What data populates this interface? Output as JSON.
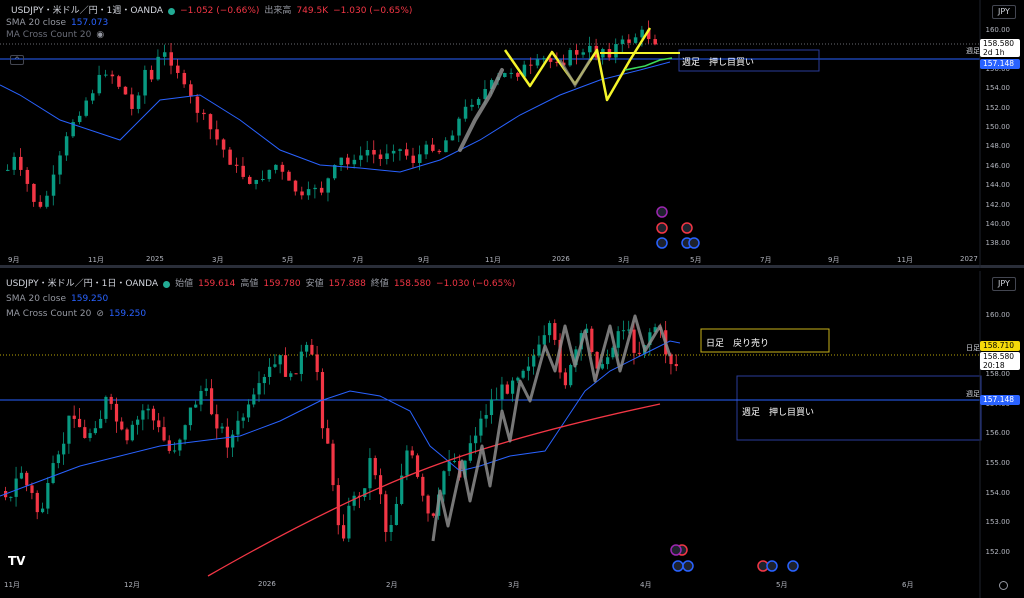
{
  "top": {
    "symbol": "USDJPY・米ドル／円・1週・OANDA",
    "change": "−1.052 (−0.66%)",
    "volume_label": "出来高",
    "volume": "749.5K",
    "volume_change": "−1.030 (−0.65%)",
    "sma_label": "SMA 20 close",
    "sma_value": "157.073",
    "ma_cross_label": "MA Cross Count 20",
    "currency": "JPY",
    "price_ticks": [
      "160.00",
      "158.00",
      "156.00",
      "154.00",
      "152.00",
      "150.00",
      "148.00",
      "146.00",
      "144.00",
      "142.00",
      "140.00",
      "138.00"
    ],
    "time_ticks": [
      "9月",
      "11月",
      "2025",
      "3月",
      "5月",
      "7月",
      "9月",
      "11月",
      "2026",
      "3月",
      "5月",
      "7月",
      "9月",
      "11月",
      "2027"
    ],
    "last_price": "158.580",
    "countdown": "2d 1h",
    "line_price": "157.148",
    "line_label": "週足",
    "annotation": "週足　押し目買い",
    "colors": {
      "up": "#089981",
      "down": "#f23645",
      "sma": "#2962ff",
      "highlight_yellow": "#f5f52a",
      "highlight_gray": "#8c8c8c",
      "highlight_green": "#3ddc5a"
    }
  },
  "bottom": {
    "symbol": "USDJPY・米ドル／円・1日・OANDA",
    "open_label": "始値",
    "open": "159.614",
    "high_label": "高値",
    "high": "159.780",
    "low_label": "安値",
    "low": "157.888",
    "close_label": "終値",
    "close": "158.580",
    "change": "−1.030 (−0.65%)",
    "sma_label": "SMA 20 close",
    "sma_value": "159.250",
    "ma_cross_label": "MA Cross Count 20",
    "ma_cross_value": "159.250",
    "currency": "JPY",
    "price_ticks": [
      "160.00",
      "159.00",
      "158.00",
      "157.00",
      "156.00",
      "155.00",
      "154.00",
      "153.00",
      "152.00"
    ],
    "time_ticks": [
      "11月",
      "12月",
      "2026",
      "2月",
      "3月",
      "4月",
      "5月",
      "6月"
    ],
    "daily_tag_label": "日足",
    "daily_tag_price": "158.710",
    "last_price": "158.580",
    "countdown": "20:18",
    "weekly_line_label": "週足",
    "weekly_line_price": "157.148",
    "sell_note": "日足　戻り売り",
    "buy_note": "週足　押し目買い",
    "colors": {
      "sma_red": "#f23645",
      "sma_blue": "#2962ff",
      "box_yellow": "#c9b21a",
      "box_blue": "#2a3d9a",
      "tag_yellow": "#f5d90a"
    }
  },
  "logo": "TV"
}
